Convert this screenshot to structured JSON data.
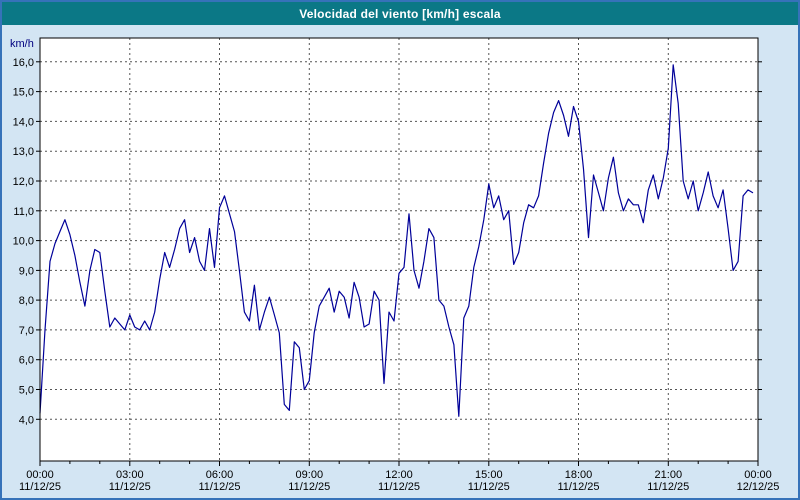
{
  "title": "Velocidad del viento [km/h] escala",
  "colors": {
    "page_bg": "#d3e5f3",
    "frame_border": "#3672b9",
    "title_bg": "#0b7886",
    "title_fg": "#ffffff",
    "plot_bg": "#ffffff",
    "grid": "#555555",
    "axis": "#000000",
    "tick_label": "#000000",
    "line": "#000099",
    "ylabel_color": "#000080"
  },
  "chart_data": {
    "type": "line",
    "title": "Velocidad del viento [km/h] escala",
    "xlabel": "",
    "ylabel": "km/h",
    "grid": true,
    "legend_position": "none",
    "xlim": [
      0,
      24
    ],
    "ylim": [
      2.6,
      16.8
    ],
    "y_ticks": [
      4,
      5,
      6,
      7,
      8,
      9,
      10,
      11,
      12,
      13,
      14,
      15,
      16
    ],
    "y_tick_labels": [
      "4,0",
      "5,0",
      "6,0",
      "7,0",
      "8,0",
      "9,0",
      "10,0",
      "11,0",
      "12,0",
      "13,0",
      "14,0",
      "15,0",
      "16,0"
    ],
    "x_ticks": [
      0,
      3,
      6,
      9,
      12,
      15,
      18,
      21,
      24
    ],
    "x_tick_labels": [
      "00:00",
      "03:00",
      "06:00",
      "09:00",
      "12:00",
      "15:00",
      "18:00",
      "21:00",
      "00:00"
    ],
    "x_tick_dates": [
      "11/12/25",
      "11/12/25",
      "11/12/25",
      "11/12/25",
      "11/12/25",
      "11/12/25",
      "11/12/25",
      "11/12/25",
      "12/12/25"
    ],
    "x0": 0,
    "dx": 0.16667,
    "series": [
      {
        "name": "Velocidad del viento",
        "color": "#000099",
        "values": [
          4.2,
          7.0,
          9.3,
          9.9,
          10.3,
          10.7,
          10.2,
          9.5,
          8.6,
          7.8,
          9.0,
          9.7,
          9.6,
          8.3,
          7.1,
          7.4,
          7.2,
          7.0,
          7.5,
          7.1,
          7.0,
          7.3,
          7.0,
          7.6,
          8.7,
          9.6,
          9.1,
          9.7,
          10.4,
          10.7,
          9.6,
          10.1,
          9.3,
          9.0,
          10.4,
          9.1,
          11.1,
          11.5,
          10.9,
          10.3,
          9.0,
          7.6,
          7.3,
          8.5,
          7.0,
          7.6,
          8.1,
          7.5,
          6.9,
          4.5,
          4.3,
          6.6,
          6.4,
          5.0,
          5.3,
          6.9,
          7.8,
          8.1,
          8.4,
          7.6,
          8.3,
          8.1,
          7.4,
          8.6,
          8.1,
          7.1,
          7.2,
          8.3,
          8.0,
          5.2,
          7.6,
          7.3,
          8.9,
          9.1,
          10.9,
          9.0,
          8.4,
          9.3,
          10.4,
          10.1,
          8.0,
          7.8,
          7.1,
          6.5,
          4.1,
          7.4,
          7.8,
          9.1,
          9.8,
          10.7,
          11.9,
          11.1,
          11.5,
          10.7,
          11.0,
          9.2,
          9.6,
          10.6,
          11.2,
          11.1,
          11.5,
          12.6,
          13.6,
          14.3,
          14.7,
          14.2,
          13.5,
          14.5,
          14.0,
          12.4,
          10.1,
          12.2,
          11.6,
          11.0,
          12.1,
          12.8,
          11.6,
          11.0,
          11.4,
          11.2,
          11.2,
          10.6,
          11.7,
          12.2,
          11.4,
          12.1,
          13.1,
          15.9,
          14.6,
          12.0,
          11.4,
          12.0,
          11.0,
          11.6,
          12.3,
          11.5,
          11.1,
          11.7,
          10.4,
          9.0,
          9.3,
          11.5,
          11.7,
          11.6
        ]
      }
    ]
  }
}
